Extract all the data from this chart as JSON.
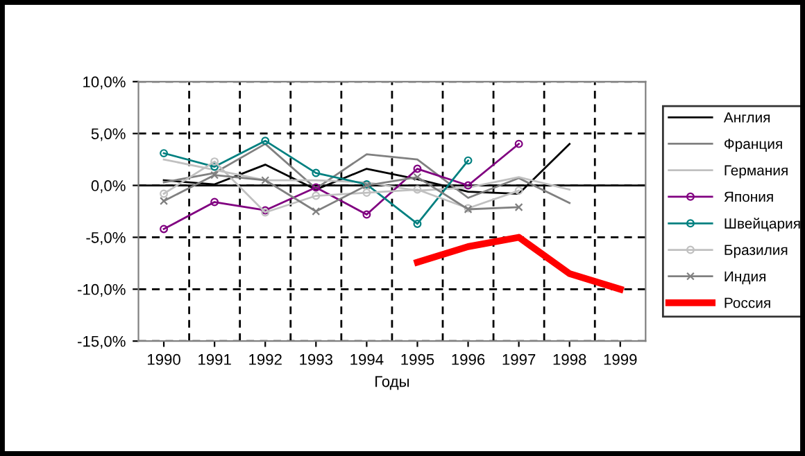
{
  "chart_data": {
    "type": "line",
    "xlabel": "Годы",
    "categories": [
      "1990",
      "1991",
      "1992",
      "1993",
      "1994",
      "1995",
      "1996",
      "1997",
      "1998",
      "1999"
    ],
    "series": [
      {
        "name": "Англия",
        "color": "#000000",
        "values": [
          0.5,
          0.1,
          2.0,
          -0.4,
          1.6,
          0.6,
          -0.6,
          -0.8,
          4.0,
          null
        ]
      },
      {
        "name": "Франция",
        "color": "#808080",
        "values": [
          0.3,
          1.2,
          4.0,
          -0.3,
          3.0,
          2.5,
          -1.2,
          0.7,
          -1.7,
          null
        ]
      },
      {
        "name": "Германия",
        "color": "#c0c0c0",
        "values": [
          2.5,
          1.5,
          0.5,
          0.5,
          0.3,
          -0.5,
          -0.2,
          0.8,
          -0.4,
          null
        ]
      },
      {
        "name": "Япония",
        "color": "#800080",
        "marker": "circle",
        "values": [
          -4.2,
          -1.6,
          -2.4,
          -0.2,
          -2.8,
          1.6,
          0.0,
          4.0,
          null,
          null
        ]
      },
      {
        "name": "Швейцария",
        "color": "#008080",
        "marker": "circle",
        "values": [
          3.1,
          1.8,
          4.3,
          1.2,
          0.1,
          -3.7,
          2.4,
          null,
          null,
          null
        ]
      },
      {
        "name": "Бразилия",
        "color": "#c0c0c0",
        "marker": "circle",
        "values": [
          -0.8,
          2.3,
          -2.6,
          -1.0,
          -0.7,
          -0.4,
          -2.2,
          -0.5,
          null,
          null
        ]
      },
      {
        "name": "Индия",
        "color": "#808080",
        "marker": "cross",
        "values": [
          -1.5,
          1.0,
          0.5,
          -2.5,
          0.0,
          0.8,
          -2.3,
          -2.1,
          null,
          null
        ]
      },
      {
        "name": "Россия",
        "color": "#ff0000",
        "values": [
          null,
          null,
          null,
          null,
          null,
          -7.4,
          -5.9,
          -5.0,
          -8.5,
          -10.0
        ]
      }
    ],
    "ylim": [
      -15,
      10
    ],
    "yticks": [
      {
        "value": -15,
        "label": "-15,0%"
      },
      {
        "value": -10,
        "label": "-10,0%"
      },
      {
        "value": -5,
        "label": "-5,0%"
      },
      {
        "value": 0,
        "label": "0,0%"
      },
      {
        "value": 5,
        "label": "5,0%"
      },
      {
        "value": 10,
        "label": "10,0%"
      }
    ],
    "ref_lines": [
      {
        "axis": "y",
        "value": 0,
        "color": "#000000",
        "line_style": "solid"
      }
    ],
    "grid": true,
    "legend": "right",
    "line_style": "solid"
  }
}
